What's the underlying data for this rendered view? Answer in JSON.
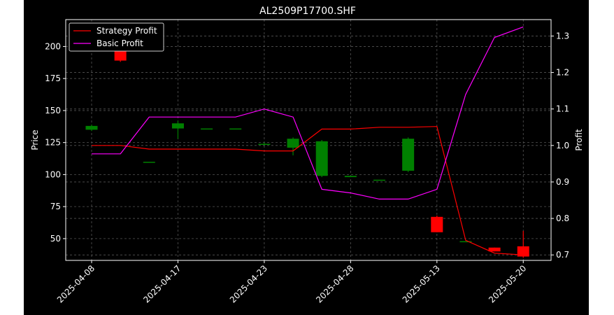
{
  "chart_data": {
    "type": "candlestick+line",
    "title": "AL2509P17700.SHF",
    "ylabel_left": "Price",
    "ylabel_right": "Profit",
    "ylim_left": [
      33,
      221
    ],
    "ylim_right": [
      0.685,
      1.345
    ],
    "yticks_left": [
      50,
      75,
      100,
      125,
      150,
      175,
      200
    ],
    "yticks_right": [
      0.7,
      0.8,
      0.9,
      1.0,
      1.1,
      1.2,
      1.3
    ],
    "xtick_labels": [
      "2025-04-08",
      "2025-04-17",
      "2025-04-23",
      "2025-04-28",
      "2025-05-13",
      "2025-05-20"
    ],
    "xtick_index": [
      0,
      3,
      6,
      9,
      12,
      15
    ],
    "grid": true,
    "legend_position": "top-left",
    "legend": [
      {
        "label": "Strategy Profit",
        "color": "#ff0000"
      },
      {
        "label": "Basic Profit",
        "color": "#ff00ff"
      }
    ],
    "colors": {
      "up": "#008000",
      "down": "#ff0000",
      "background": "#000000",
      "grid": "#555555"
    },
    "candles": [
      {
        "i": 0,
        "open": 135,
        "close": 138,
        "high": 139,
        "low": 134
      },
      {
        "i": 1,
        "open": 200,
        "close": 189,
        "high": 201,
        "low": 188
      },
      {
        "i": 2,
        "open": 110,
        "close": 110,
        "high": 110,
        "low": 110
      },
      {
        "i": 3,
        "open": 136,
        "close": 140,
        "high": 142,
        "low": 128
      },
      {
        "i": 4,
        "open": 136,
        "close": 136,
        "high": 136,
        "low": 136
      },
      {
        "i": 5,
        "open": 136,
        "close": 136,
        "high": 136,
        "low": 136
      },
      {
        "i": 6,
        "open": 124,
        "close": 124,
        "high": 125,
        "low": 123
      },
      {
        "i": 7,
        "open": 121,
        "close": 128,
        "high": 129,
        "low": 115
      },
      {
        "i": 8,
        "open": 99,
        "close": 126,
        "high": 127,
        "low": 98
      },
      {
        "i": 9,
        "open": 98,
        "close": 99,
        "high": 99,
        "low": 98
      },
      {
        "i": 10,
        "open": 96,
        "close": 96,
        "high": 96,
        "low": 96
      },
      {
        "i": 11,
        "open": 103,
        "close": 128,
        "high": 129,
        "low": 102
      },
      {
        "i": 12,
        "open": 67,
        "close": 55,
        "high": 68,
        "low": 55
      },
      {
        "i": 13,
        "open": 48,
        "close": 48,
        "high": 48,
        "low": 48
      },
      {
        "i": 14,
        "open": 43,
        "close": 40,
        "high": 43,
        "low": 40
      },
      {
        "i": 15,
        "open": 44,
        "close": 36,
        "high": 56,
        "low": 35
      }
    ],
    "series": [
      {
        "name": "Strategy Profit",
        "axis": "right",
        "color": "#ff0000",
        "values": [
          1.0,
          1.0,
          0.99,
          0.99,
          0.99,
          0.99,
          0.985,
          0.985,
          1.045,
          1.045,
          1.05,
          1.05,
          1.052,
          0.74,
          0.705,
          0.7
        ]
      },
      {
        "name": "Basic Profit",
        "axis": "right",
        "color": "#ff00ff",
        "values": [
          0.977,
          0.977,
          1.078,
          1.078,
          1.078,
          1.078,
          1.1,
          1.078,
          0.88,
          0.87,
          0.853,
          0.853,
          0.88,
          1.14,
          1.296,
          1.325
        ]
      }
    ]
  }
}
